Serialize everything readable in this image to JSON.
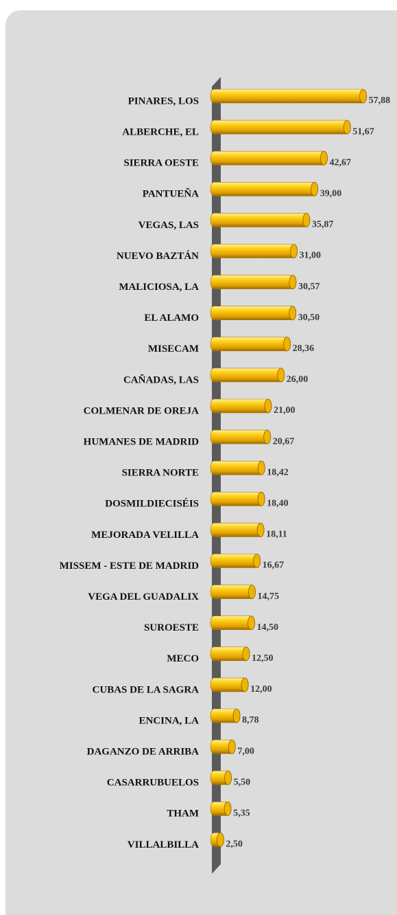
{
  "chart_data": {
    "type": "bar",
    "orientation": "horizontal",
    "categories": [
      "PINARES, LOS",
      "ALBERCHE, EL",
      "SIERRA OESTE",
      "PANTUEÑA",
      "VEGAS, LAS",
      "NUEVO BAZTÁN",
      "MALICIOSA, LA",
      "EL ALAMO",
      "MISECAM",
      "CAÑADAS, LAS",
      "COLMENAR DE OREJA",
      "HUMANES DE MADRID",
      "SIERRA NORTE",
      "DOSMILDIECISÉIS",
      "MEJORADA VELILLA",
      "MISSEM - ESTE DE MADRID",
      "VEGA DEL GUADALIX",
      "SUROESTE",
      "MECO",
      "CUBAS DE LA SAGRA",
      "ENCINA, LA",
      "DAGANZO DE ARRIBA",
      "CASARRUBUELOS",
      "THAM",
      "VILLALBILLA"
    ],
    "values": [
      57.88,
      51.67,
      42.67,
      39.0,
      35.87,
      31.0,
      30.57,
      30.5,
      28.36,
      26.0,
      21.0,
      20.67,
      18.42,
      18.4,
      18.11,
      16.67,
      14.75,
      14.5,
      12.5,
      12.0,
      8.78,
      7.0,
      5.5,
      5.35,
      2.5
    ],
    "value_labels": [
      "57,88",
      "51,67",
      "42,67",
      "39,00",
      "35,87",
      "31,00",
      "30,57",
      "30,50",
      "28,36",
      "26,00",
      "21,00",
      "20,67",
      "18,42",
      "18,40",
      "18,11",
      "16,67",
      "14,75",
      "14,50",
      "12,50",
      "12,00",
      "8,78",
      "7,00",
      "5,50",
      "5,35",
      "2,50"
    ],
    "color": "#f0b400"
  }
}
